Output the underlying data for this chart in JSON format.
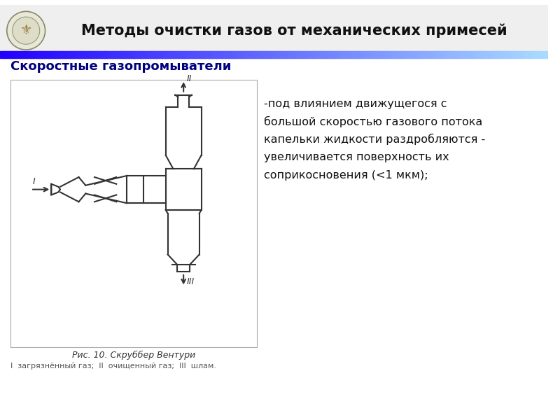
{
  "title": "Методы очистки газов от механических примесей",
  "subtitle": "Скоростные газопромыватели",
  "description_lines": [
    "-под влиянием движущегося с",
    "большой скоростью газового потока",
    "капельки жидкости раздробляются -",
    "увеличивается поверхность их",
    "соприкосновения (<1 мкм);"
  ],
  "fig_caption": "Рис. 10. Скруббер Вентури",
  "legend_text": "I  загрязнённый газ;  II  очищенный газ;  III  шлам.",
  "bg_color": "#ffffff",
  "header_bg": "#efefef",
  "title_color": "#111111",
  "subtitle_color": "#000080",
  "line_color": "#333333",
  "grad_left": "#2200ff",
  "grad_right": "#aaddff"
}
